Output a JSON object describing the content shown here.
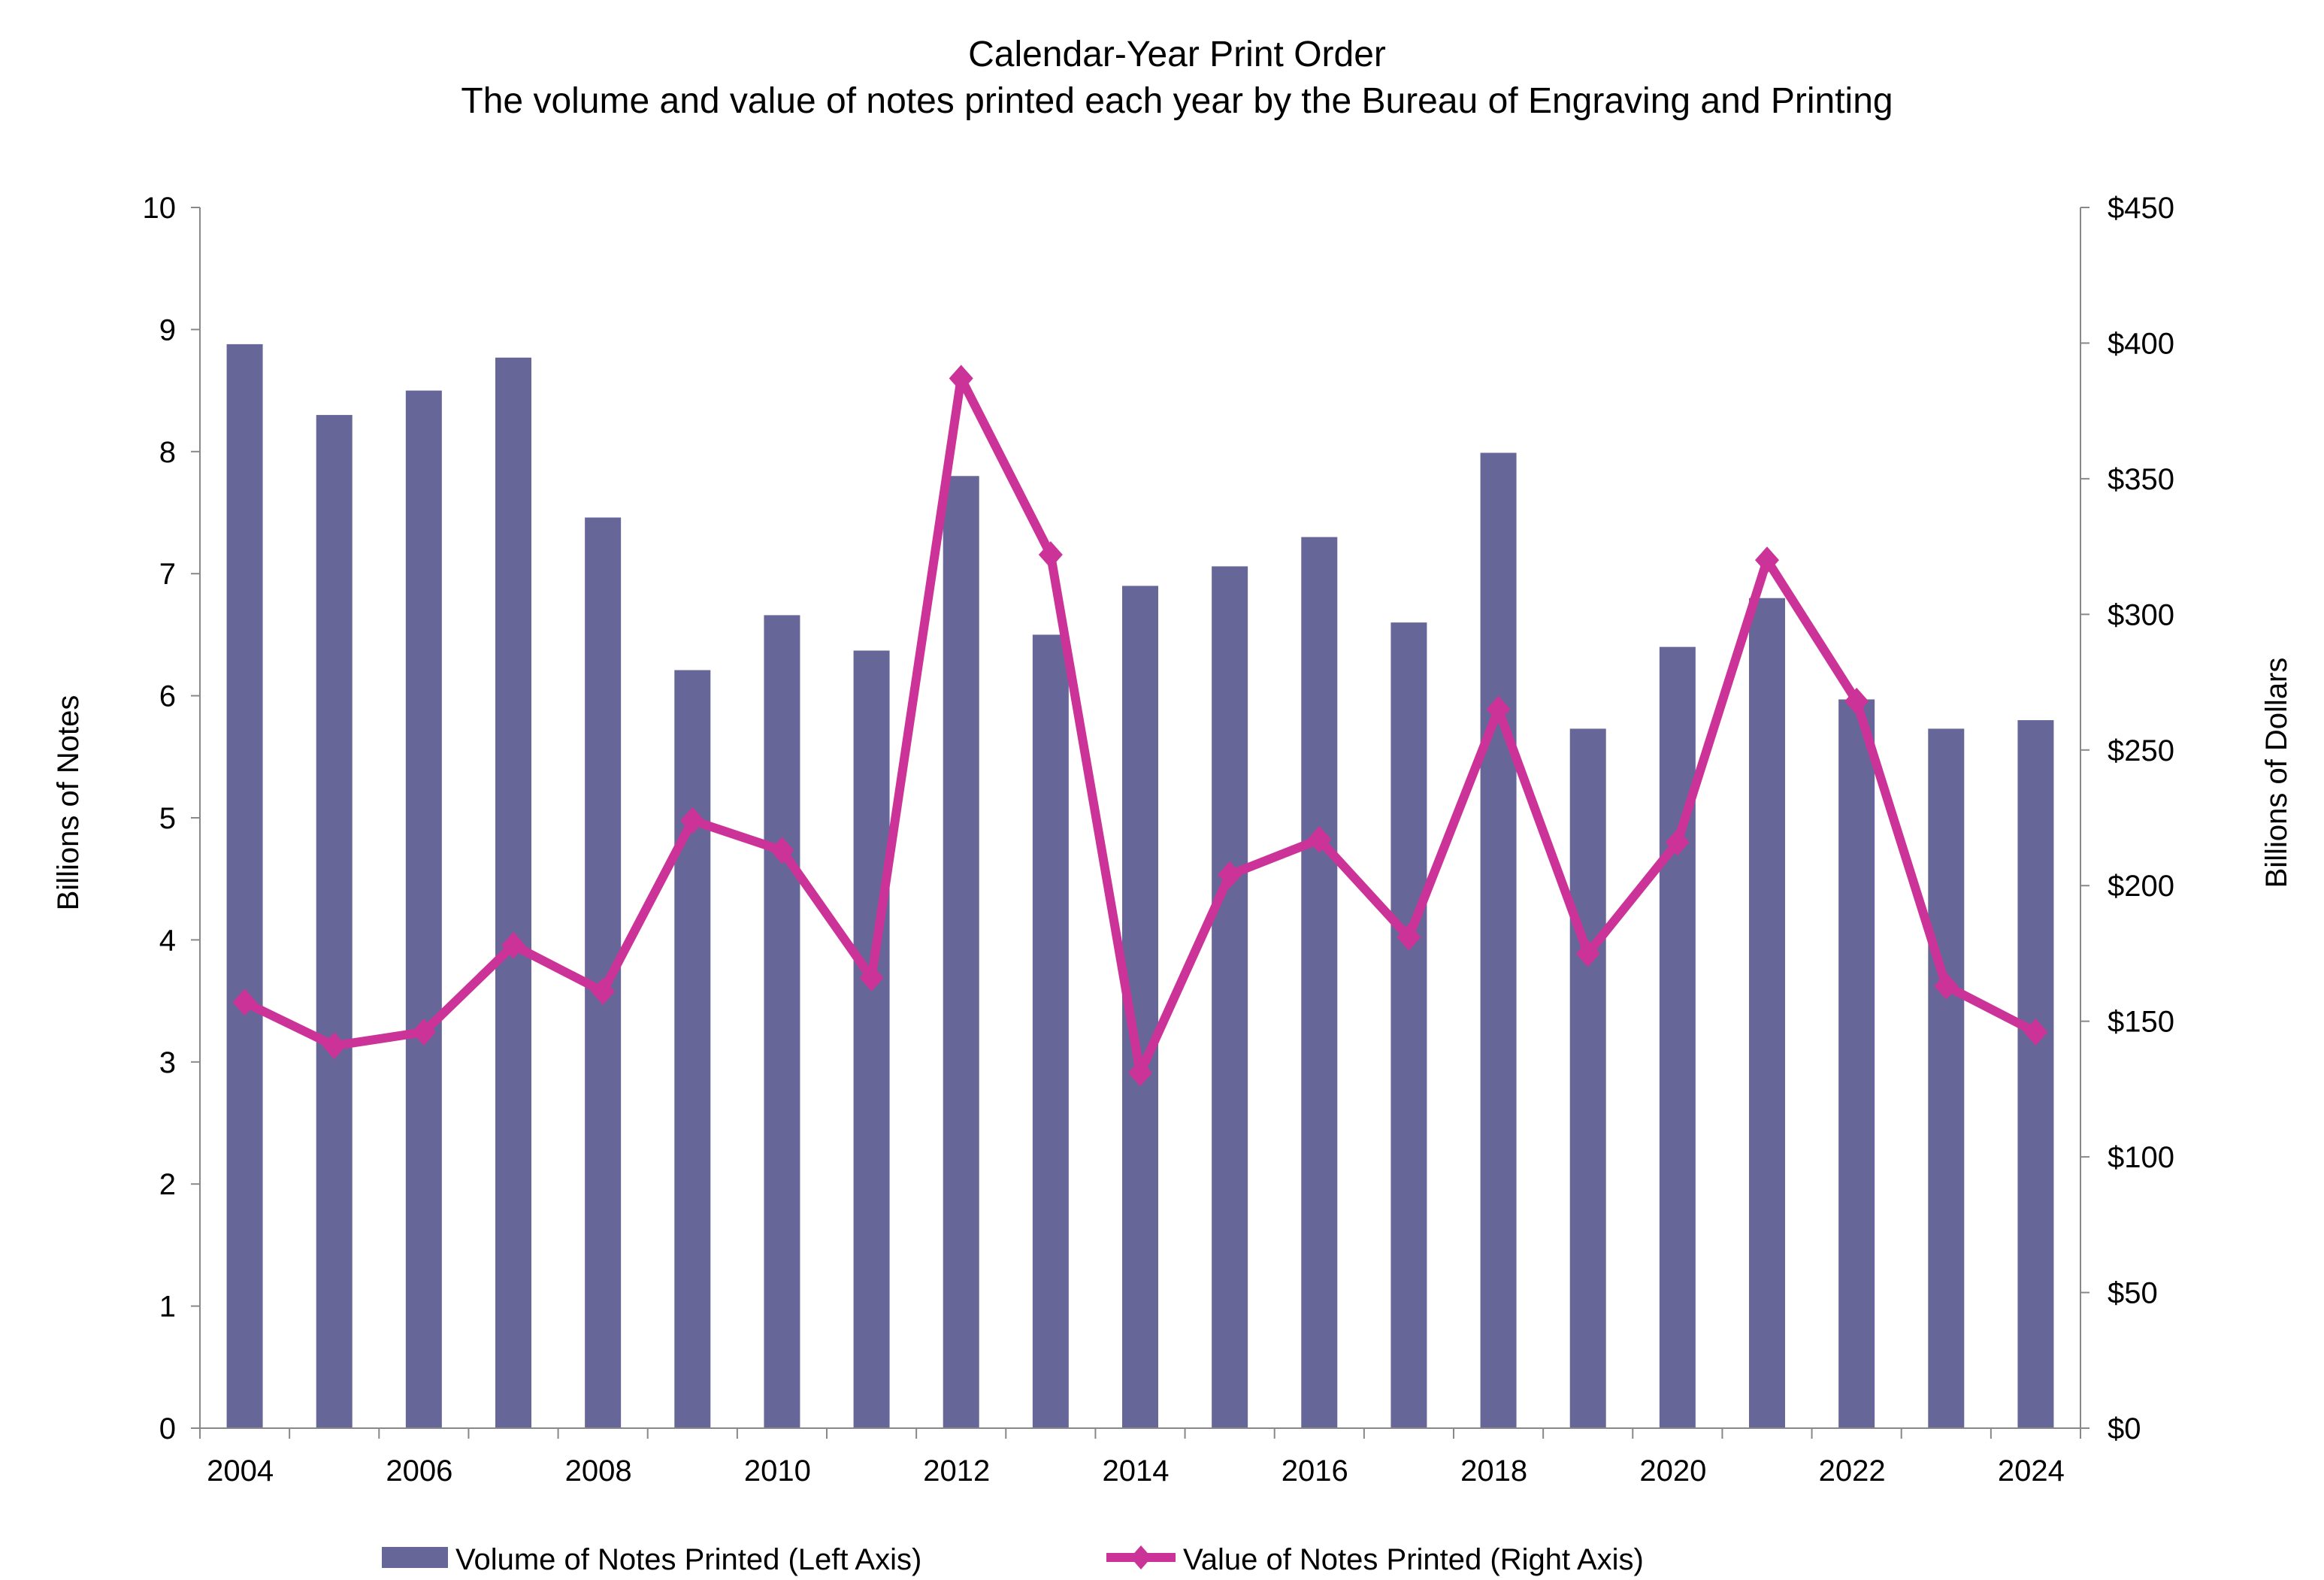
{
  "chart_data": {
    "type": "bar+line",
    "title": "Calendar-Year Print Order",
    "subtitle": "The volume and value of notes printed each year by the Bureau of Engraving and Printing",
    "categories": [
      "2004",
      "2005",
      "2006",
      "2007",
      "2008",
      "2009",
      "2010",
      "2011",
      "2012",
      "2013",
      "2014",
      "2015",
      "2016",
      "2017",
      "2018",
      "2019",
      "2020",
      "2021",
      "2022",
      "2023",
      "2024"
    ],
    "x_tick_labels": [
      "2004",
      "2006",
      "2008",
      "2010",
      "2012",
      "2014",
      "2016",
      "2018",
      "2020",
      "2022",
      "2024"
    ],
    "ylabel_left": "Billions of Notes",
    "ylabel_right": "Billions of Dollars",
    "ylim_left": [
      0,
      10
    ],
    "ylim_right": [
      0,
      450
    ],
    "left_ticks": [
      "0",
      "1",
      "2",
      "3",
      "4",
      "5",
      "6",
      "7",
      "8",
      "9",
      "10"
    ],
    "right_ticks": [
      "$0",
      "$50",
      "$100",
      "$150",
      "$200",
      "$250",
      "$300",
      "$350",
      "$400",
      "$450"
    ],
    "grid": false,
    "legend_position": "bottom",
    "series": [
      {
        "name": "Volume of Notes Printed (Left Axis)",
        "type": "bar",
        "axis": "left",
        "color": "#666699",
        "values": [
          8.88,
          8.3,
          8.5,
          8.77,
          7.46,
          6.21,
          6.66,
          6.37,
          7.8,
          6.5,
          6.9,
          7.06,
          7.3,
          6.6,
          7.99,
          5.73,
          6.4,
          6.8,
          5.97,
          5.73,
          5.8
        ]
      },
      {
        "name": "Value of Notes Printed (Right Axis)",
        "type": "line",
        "axis": "right",
        "color": "#CC3399",
        "marker": "diamond",
        "values": [
          157,
          141,
          146,
          178,
          161,
          224,
          213,
          166,
          387,
          322,
          131,
          204,
          217,
          181,
          265,
          175,
          216,
          320,
          268,
          163,
          146
        ]
      }
    ]
  }
}
